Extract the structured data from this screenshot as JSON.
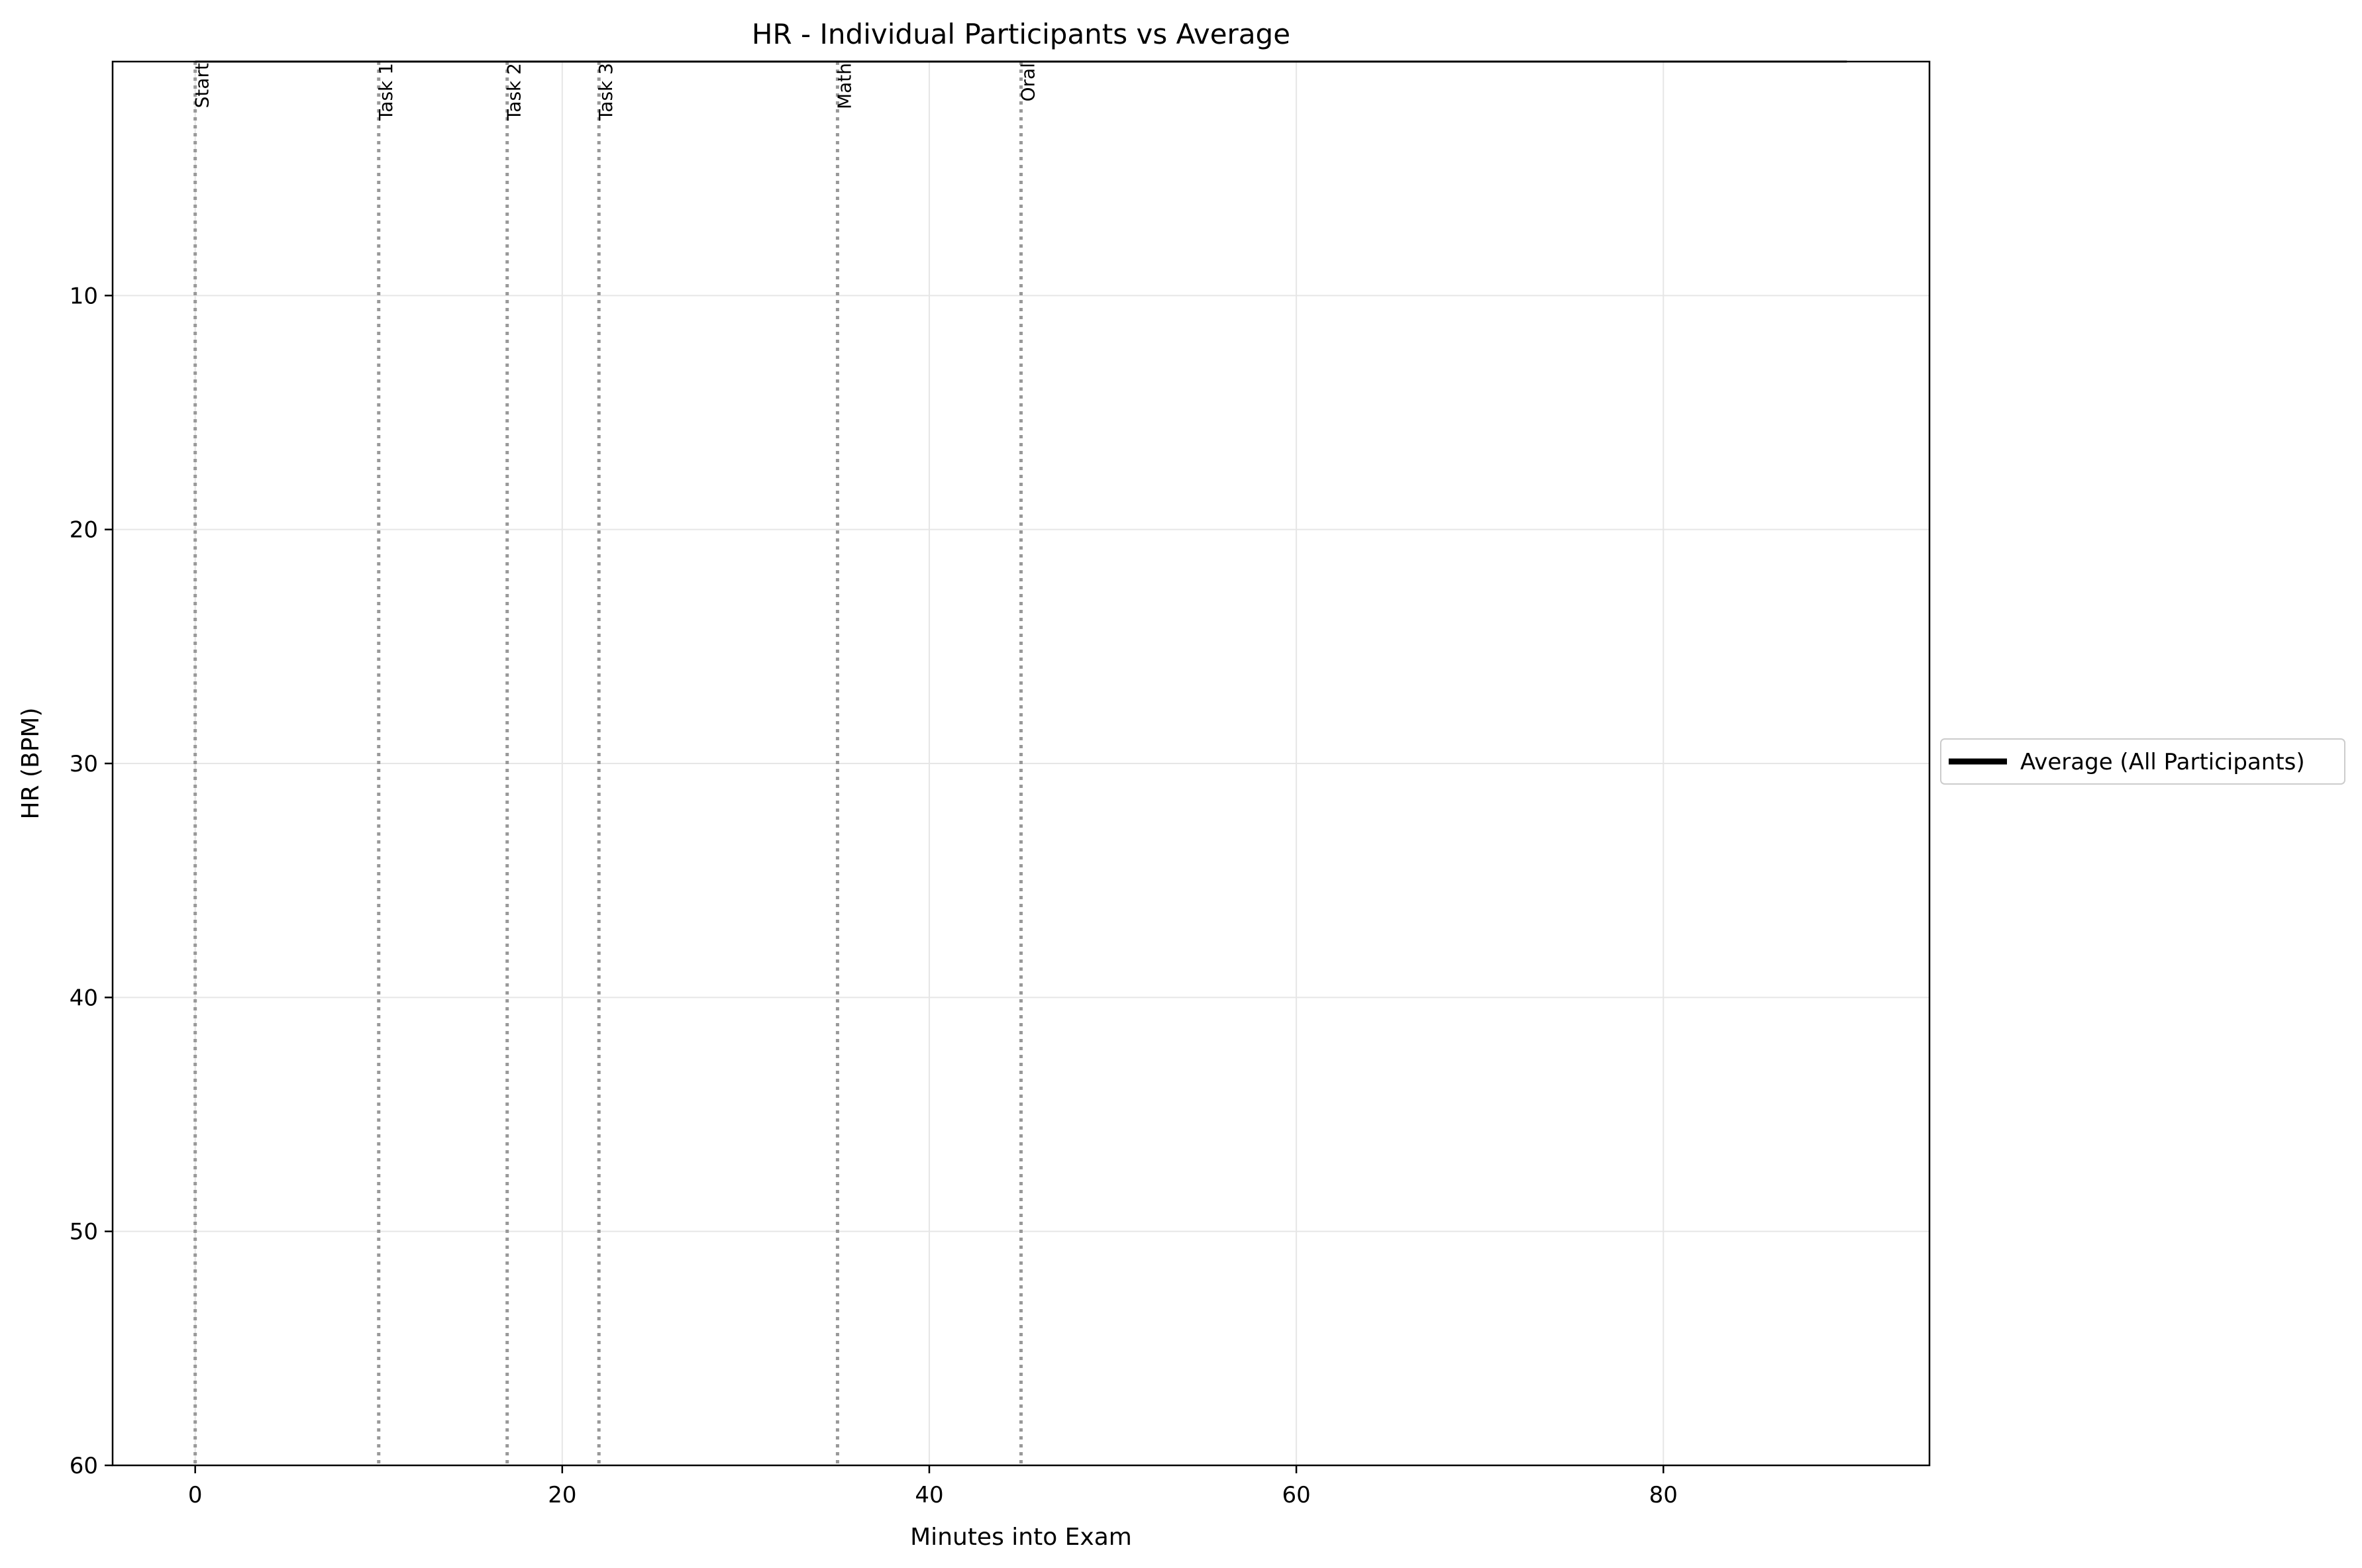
{
  "chart_data": {
    "type": "line",
    "title": "HR - Individual Participants vs Average",
    "xlabel": "Minutes into Exam",
    "ylabel": "HR (BPM)",
    "xlim": [
      -4.5,
      94.5
    ],
    "ylim": [
      60,
      0
    ],
    "y_inverted": true,
    "xticks": [
      0,
      20,
      40,
      60,
      80
    ],
    "yticks": [
      10,
      20,
      30,
      40,
      50,
      60
    ],
    "grid": true,
    "legend": {
      "placement": "outside-right",
      "entries": [
        "Average (All Participants)"
      ]
    },
    "series": [
      {
        "name": "Average (All Participants)",
        "color": "#000000",
        "x": [
          0,
          90
        ],
        "y": [
          0,
          0
        ]
      }
    ],
    "events": [
      {
        "x": 0,
        "label": "Start"
      },
      {
        "x": 10,
        "label": "Task 1"
      },
      {
        "x": 17,
        "label": "Task 2"
      },
      {
        "x": 22,
        "label": "Task 3"
      },
      {
        "x": 35,
        "label": "Math"
      },
      {
        "x": 45,
        "label": "Oral"
      }
    ],
    "colors": {
      "grid": "#e6e6e6",
      "event_line": "#999999",
      "axis": "#000000"
    }
  }
}
